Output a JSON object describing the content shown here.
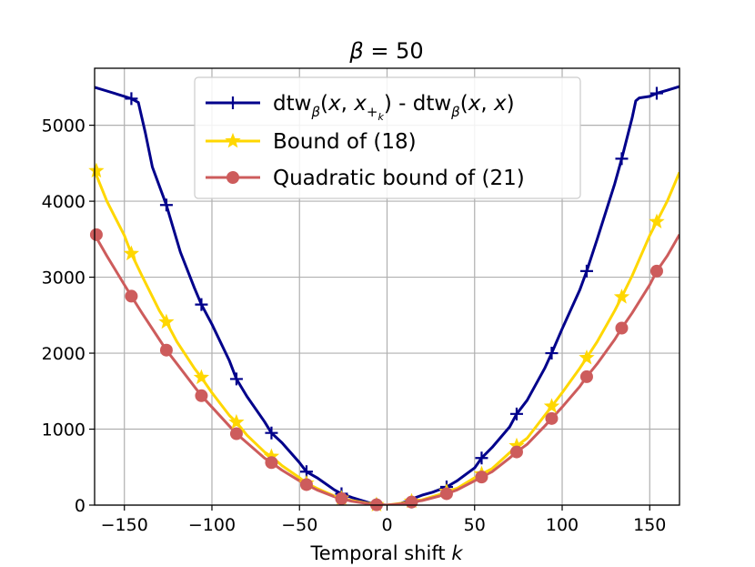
{
  "chart_data": {
    "type": "line",
    "title_symbol": "β",
    "title_rest": " = 50",
    "xlabel_text": "Temporal shift ",
    "xlabel_var": "k",
    "ylabel": "",
    "xlim": [
      -167,
      167
    ],
    "ylim": [
      0,
      5750
    ],
    "x_ticks": [
      -150,
      -100,
      -50,
      0,
      50,
      100,
      150
    ],
    "x_tick_labels": [
      "−150",
      "−100",
      "−50",
      "0",
      "50",
      "100",
      "150"
    ],
    "y_ticks": [
      0,
      1000,
      2000,
      3000,
      4000,
      5000
    ],
    "y_tick_labels": [
      "0",
      "1000",
      "2000",
      "3000",
      "4000",
      "5000"
    ],
    "grid": true,
    "legend_position": "top-center",
    "series": [
      {
        "name": "dtw_beta(x, x_{+k}) - dtw_beta(x, x)",
        "legend_parts": [
          "dtw",
          "β",
          "(",
          "x",
          ", ",
          "x",
          "+",
          "k",
          ") - dtw",
          "β",
          "(",
          "x",
          ", ",
          "x",
          ")"
        ],
        "color": "#00008b",
        "marker": "plus",
        "x": [
          -167,
          -160,
          -150,
          -146,
          -142,
          -138,
          -134,
          -130,
          -126,
          -118,
          -110,
          -106,
          -100,
          -90,
          -86,
          -80,
          -70,
          -66,
          -60,
          -50,
          -46,
          -40,
          -30,
          -26,
          -20,
          -10,
          -6,
          0,
          6,
          10,
          14,
          20,
          26,
          34,
          40,
          50,
          54,
          60,
          70,
          74,
          80,
          90,
          94,
          100,
          110,
          114,
          120,
          130,
          134,
          140,
          142,
          144,
          150,
          154,
          160,
          167
        ],
        "values": [
          5500,
          5450,
          5380,
          5350,
          5300,
          4900,
          4450,
          4200,
          3950,
          3330,
          2860,
          2640,
          2380,
          1900,
          1660,
          1430,
          1100,
          950,
          820,
          560,
          440,
          360,
          200,
          150,
          100,
          30,
          8,
          0,
          8,
          40,
          80,
          130,
          170,
          240,
          320,
          490,
          620,
          760,
          1030,
          1200,
          1380,
          1800,
          2000,
          2320,
          2830,
          3080,
          3500,
          4230,
          4560,
          5100,
          5320,
          5360,
          5380,
          5420,
          5460,
          5510
        ],
        "marker_x": [
          -146,
          -126,
          -106,
          -86,
          -66,
          -46,
          -26,
          -6,
          14,
          34,
          54,
          74,
          94,
          114,
          134,
          154
        ],
        "marker_y": [
          5350,
          3950,
          2640,
          1660,
          950,
          440,
          150,
          8,
          40,
          240,
          620,
          1200,
          2000,
          3080,
          4560,
          5420
        ]
      },
      {
        "name": "Bound of (18)",
        "color": "#ffd700",
        "marker": "star",
        "x": [
          -167,
          -160,
          -150,
          -146,
          -140,
          -130,
          -126,
          -120,
          -110,
          -106,
          -100,
          -90,
          -86,
          -80,
          -70,
          -66,
          -60,
          -50,
          -46,
          -40,
          -30,
          -26,
          -20,
          -10,
          -6,
          0,
          10,
          14,
          20,
          30,
          34,
          40,
          50,
          54,
          60,
          70,
          74,
          80,
          90,
          94,
          100,
          110,
          114,
          120,
          130,
          134,
          140,
          150,
          154,
          160,
          167
        ],
        "values": [
          4400,
          4000,
          3550,
          3310,
          3020,
          2560,
          2410,
          2150,
          1800,
          1680,
          1480,
          1180,
          1090,
          920,
          700,
          640,
          520,
          360,
          290,
          220,
          120,
          90,
          60,
          20,
          5,
          0,
          30,
          50,
          70,
          140,
          180,
          220,
          360,
          410,
          480,
          690,
          780,
          880,
          1180,
          1300,
          1480,
          1800,
          1940,
          2150,
          2560,
          2740,
          3020,
          3550,
          3730,
          4000,
          4380
        ],
        "marker_x": [
          -166,
          -146,
          -126,
          -106,
          -86,
          -66,
          -46,
          -26,
          -6,
          14,
          34,
          54,
          74,
          94,
          114,
          134,
          154
        ],
        "marker_y": [
          4400,
          3310,
          2410,
          1680,
          1090,
          640,
          290,
          90,
          5,
          50,
          180,
          410,
          780,
          1300,
          1940,
          2740,
          3730
        ]
      },
      {
        "name": "Quadratic bound of (21)",
        "color": "#cd5c5c",
        "marker": "circle",
        "x": [
          -167,
          -160,
          -150,
          -146,
          -140,
          -130,
          -126,
          -120,
          -110,
          -106,
          -100,
          -90,
          -86,
          -80,
          -70,
          -66,
          -60,
          -50,
          -46,
          -40,
          -30,
          -26,
          -20,
          -10,
          -6,
          0,
          10,
          14,
          20,
          30,
          34,
          40,
          50,
          54,
          60,
          70,
          74,
          80,
          90,
          94,
          100,
          110,
          114,
          120,
          130,
          134,
          140,
          150,
          154,
          160,
          167
        ],
        "values": [
          3560,
          3280,
          2900,
          2750,
          2530,
          2180,
          2040,
          1860,
          1560,
          1440,
          1290,
          1040,
          940,
          820,
          620,
          560,
          460,
          320,
          270,
          200,
          110,
          85,
          50,
          15,
          4,
          0,
          20,
          40,
          60,
          120,
          150,
          200,
          320,
          370,
          440,
          620,
          700,
          800,
          1040,
          1140,
          1290,
          1560,
          1690,
          1860,
          2180,
          2330,
          2530,
          2900,
          3080,
          3280,
          3560
        ],
        "marker_x": [
          -166,
          -146,
          -126,
          -106,
          -86,
          -66,
          -46,
          -26,
          -6,
          14,
          34,
          54,
          74,
          94,
          114,
          134,
          154
        ],
        "marker_y": [
          3560,
          2750,
          2040,
          1440,
          940,
          560,
          270,
          85,
          4,
          40,
          150,
          370,
          700,
          1140,
          1690,
          2330,
          3080
        ]
      }
    ]
  }
}
